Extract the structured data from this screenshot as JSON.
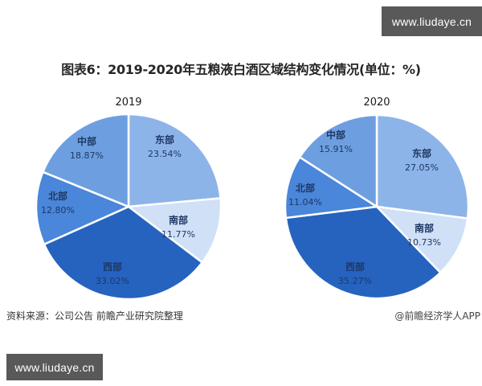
{
  "watermark": {
    "top_right": "www.liudaye.cn",
    "bottom_left": "www.liudaye.cn"
  },
  "title": "图表6：2019-2020年五粮液白酒区域结构变化情况(单位：%)",
  "source": "资料来源：公司公告 前瞻产业研究院整理",
  "credit": "@前瞻经济学人APP",
  "colors": {
    "东部": "#8db4e8",
    "南部": "#cfe0f7",
    "西部": "#2563bf",
    "北部": "#4a86d9",
    "中部": "#6d9fe0"
  },
  "chart_data": [
    {
      "type": "pie",
      "title": "2019",
      "categories": [
        "东部",
        "南部",
        "西部",
        "北部",
        "中部"
      ],
      "values": [
        23.54,
        11.77,
        33.02,
        12.8,
        18.87
      ],
      "labels": [
        "23.54%",
        "11.77%",
        "33.02%",
        "12.80%",
        "18.87%"
      ],
      "start_angle": "12 o'clock",
      "direction": "clockwise",
      "unit": "%"
    },
    {
      "type": "pie",
      "title": "2020",
      "categories": [
        "东部",
        "南部",
        "西部",
        "北部",
        "中部"
      ],
      "values": [
        27.05,
        10.73,
        35.27,
        11.04,
        15.91
      ],
      "labels": [
        "27.05%",
        "10.73%",
        "35.27%",
        "11.04%",
        "15.91%"
      ],
      "start_angle": "12 o'clock",
      "direction": "clockwise",
      "unit": "%"
    }
  ]
}
